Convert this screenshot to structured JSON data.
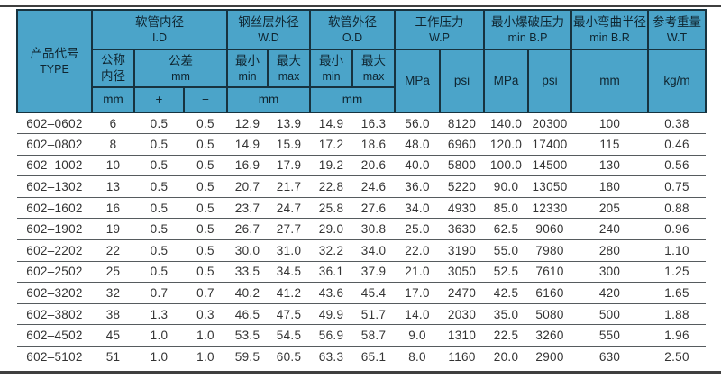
{
  "colors": {
    "header_bg": "#4BA4C9",
    "header_border": "#17333F",
    "header_text": "#0F2530",
    "body_text": "#333333",
    "row_divider": "#565B5E",
    "rule": "#3F3F3F"
  },
  "table": {
    "header": {
      "product_code": {
        "zh": "产品代号",
        "en": "TYPE"
      },
      "id": {
        "zh": "软管内径",
        "en": "I.D",
        "nominal_line1": "公称",
        "nominal_line2": "内径",
        "tolerance_line1": "公差",
        "tolerance_line2": "mm",
        "unit": "mm",
        "plus": "+",
        "minus": "−"
      },
      "wd": {
        "zh": "钢丝层外径",
        "en": "W.D",
        "min_line1": "最小",
        "min_line2": "min",
        "max_line1": "最大",
        "max_line2": "max",
        "unit": "mm"
      },
      "od": {
        "zh": "软管外径",
        "en": "O.D",
        "min_line1": "最小",
        "min_line2": "min",
        "max_line1": "最大",
        "max_line2": "max",
        "unit": "mm"
      },
      "wp": {
        "zh": "工作压力",
        "en": "W.P",
        "unit_mpa": "MPa",
        "unit_psi": "psi"
      },
      "bp": {
        "zh": "最小爆破压力",
        "en": "min B.P",
        "unit_mpa": "MPa",
        "unit_psi": "psi"
      },
      "br": {
        "zh": "最小弯曲半径",
        "en": "min B.R",
        "unit": "mm"
      },
      "wt": {
        "zh": "参考重量",
        "en": "W.T",
        "unit": "kg/m"
      }
    },
    "rows": [
      [
        "602–0602",
        "6",
        "0.5",
        "0.5",
        "12.9",
        "13.9",
        "14.9",
        "16.3",
        "56.0",
        "8120",
        "140.0",
        "20300",
        "100",
        "0.38"
      ],
      [
        "602–0802",
        "8",
        "0.5",
        "0.5",
        "14.9",
        "15.9",
        "17.2",
        "18.6",
        "48.0",
        "6960",
        "120.0",
        "17400",
        "115",
        "0.46"
      ],
      [
        "602–1002",
        "10",
        "0.5",
        "0.5",
        "16.9",
        "17.9",
        "19.2",
        "20.6",
        "40.0",
        "5800",
        "100.0",
        "14500",
        "130",
        "0.56"
      ],
      [
        "602–1302",
        "13",
        "0.5",
        "0.5",
        "20.7",
        "21.7",
        "22.8",
        "24.6",
        "36.0",
        "5220",
        "90.0",
        "13050",
        "180",
        "0.75"
      ],
      [
        "602–1602",
        "16",
        "0.5",
        "0.5",
        "23.7",
        "24.7",
        "25.8",
        "27.6",
        "34.0",
        "4930",
        "85.0",
        "12330",
        "205",
        "0.88"
      ],
      [
        "602–1902",
        "19",
        "0.5",
        "0.5",
        "26.7",
        "27.7",
        "29.0",
        "30.8",
        "25.0",
        "3630",
        "62.5",
        "9060",
        "240",
        "0.96"
      ],
      [
        "602–2202",
        "22",
        "0.5",
        "0.5",
        "30.0",
        "31.0",
        "32.2",
        "34.0",
        "22.0",
        "3190",
        "55.0",
        "7980",
        "280",
        "1.10"
      ],
      [
        "602–2502",
        "25",
        "0.5",
        "0.5",
        "33.5",
        "34.5",
        "36.1",
        "37.9",
        "21.0",
        "3050",
        "52.5",
        "7610",
        "300",
        "1.25"
      ],
      [
        "602–3202",
        "32",
        "0.7",
        "0.7",
        "40.2",
        "41.2",
        "43.6",
        "45.4",
        "17.0",
        "2470",
        "42.5",
        "6160",
        "420",
        "1.65"
      ],
      [
        "602–3802",
        "38",
        "1.3",
        "0.3",
        "46.5",
        "47.5",
        "49.9",
        "51.7",
        "14.0",
        "2030",
        "35.0",
        "5080",
        "500",
        "1.88"
      ],
      [
        "602–4502",
        "45",
        "1.0",
        "1.0",
        "53.5",
        "54.5",
        "56.9",
        "58.7",
        "9.0",
        "1310",
        "22.5",
        "3260",
        "550",
        "1.96"
      ],
      [
        "602–5102",
        "51",
        "1.0",
        "1.0",
        "59.5",
        "60.5",
        "63.3",
        "65.1",
        "8.0",
        "1160",
        "20.0",
        "2900",
        "630",
        "2.50"
      ]
    ]
  }
}
